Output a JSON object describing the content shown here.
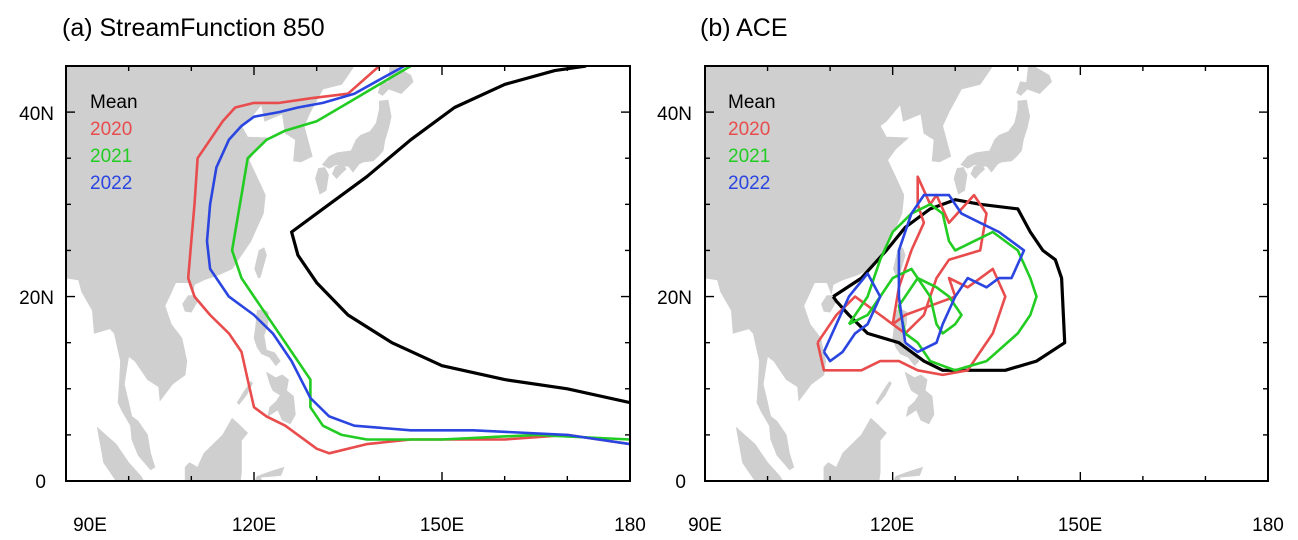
{
  "colors": {
    "mean": "#000000",
    "2020": "#e84c4c",
    "2021": "#22cc22",
    "2022": "#2a45e0",
    "land": "#cfcfcf"
  },
  "panels": [
    {
      "title": "(a) StreamFunction 850",
      "x_ticks": [
        "90E",
        "120E",
        "150E",
        "180"
      ],
      "y_ticks": [
        "0",
        "20N",
        "40N"
      ],
      "legend": [
        "Mean",
        "2020",
        "2021",
        "2022"
      ]
    },
    {
      "title": "(b) ACE",
      "x_ticks": [
        "90E",
        "120E",
        "150E",
        "180"
      ],
      "y_ticks": [
        "0",
        "20N",
        "40N"
      ],
      "legend": [
        "Mean",
        "2020",
        "2021",
        "2022"
      ]
    }
  ],
  "chart_data": [
    {
      "type": "line",
      "title": "(a) StreamFunction 850",
      "xlim": [
        90,
        180
      ],
      "ylim": [
        0,
        45
      ],
      "series": [
        {
          "name": "Mean",
          "color": "#000000",
          "points": [
            [
              173,
              45
            ],
            [
              168,
              44.5
            ],
            [
              160,
              43
            ],
            [
              152,
              40.5
            ],
            [
              145,
              37
            ],
            [
              138,
              33
            ],
            [
              131,
              29.5
            ],
            [
              127,
              27.5
            ],
            [
              126,
              27
            ],
            [
              127,
              24.5
            ],
            [
              130,
              21.5
            ],
            [
              135,
              18
            ],
            [
              142,
              15
            ],
            [
              150,
              12.5
            ],
            [
              160,
              11
            ],
            [
              170,
              10
            ],
            [
              180,
              8.5
            ]
          ]
        },
        {
          "name": "2020",
          "color": "#e84c4c",
          "points": [
            [
              140,
              45
            ],
            [
              135,
              42
            ],
            [
              129,
              41.5
            ],
            [
              124,
              41
            ],
            [
              120,
              41
            ],
            [
              117,
              40.5
            ],
            [
              115,
              39
            ],
            [
              113,
              37
            ],
            [
              111,
              35
            ],
            [
              110.5,
              30
            ],
            [
              110,
              26
            ],
            [
              109.5,
              22
            ],
            [
              110.5,
              20
            ],
            [
              113,
              18
            ],
            [
              116,
              16
            ],
            [
              118,
              14
            ],
            [
              119,
              11
            ],
            [
              120,
              8
            ],
            [
              122,
              7
            ],
            [
              125,
              6
            ],
            [
              127,
              5
            ],
            [
              130,
              3.5
            ],
            [
              132,
              3
            ],
            [
              138,
              4
            ],
            [
              145,
              4.5
            ],
            [
              160,
              4.5
            ],
            [
              170,
              5
            ],
            [
              180,
              4
            ]
          ]
        },
        {
          "name": "2021",
          "color": "#22cc22",
          "points": [
            [
              145,
              45
            ],
            [
              140,
              43
            ],
            [
              135,
              41
            ],
            [
              130,
              39
            ],
            [
              125,
              38
            ],
            [
              122,
              37
            ],
            [
              119,
              35
            ],
            [
              118,
              31
            ],
            [
              117,
              27
            ],
            [
              116.5,
              25
            ],
            [
              118,
              22
            ],
            [
              120,
              20
            ],
            [
              123,
              17
            ],
            [
              126,
              14
            ],
            [
              128,
              12
            ],
            [
              129,
              11
            ],
            [
              129,
              8
            ],
            [
              131,
              6
            ],
            [
              134,
              5
            ],
            [
              138,
              4.5
            ],
            [
              150,
              4.5
            ],
            [
              165,
              5
            ],
            [
              180,
              4.5
            ]
          ]
        },
        {
          "name": "2022",
          "color": "#2a45e0",
          "points": [
            [
              144,
              45
            ],
            [
              140,
              43.5
            ],
            [
              136,
              42
            ],
            [
              131,
              41
            ],
            [
              127,
              40.5
            ],
            [
              124,
              40
            ],
            [
              120,
              39.5
            ],
            [
              118,
              38.5
            ],
            [
              116,
              37
            ],
            [
              114,
              34
            ],
            [
              113,
              30
            ],
            [
              112.5,
              26
            ],
            [
              113,
              23
            ],
            [
              116,
              20
            ],
            [
              120,
              18
            ],
            [
              123,
              16
            ],
            [
              126,
              13
            ],
            [
              129,
              9
            ],
            [
              132,
              7
            ],
            [
              136,
              6
            ],
            [
              145,
              5.5
            ],
            [
              155,
              5.5
            ],
            [
              170,
              5
            ],
            [
              180,
              4
            ]
          ]
        }
      ]
    },
    {
      "type": "line",
      "title": "(b) ACE",
      "xlim": [
        90,
        180
      ],
      "ylim": [
        0,
        45
      ],
      "series": [
        {
          "name": "Mean",
          "color": "#000000",
          "points": [
            [
              110.5,
              20
            ],
            [
              115,
              22
            ],
            [
              119,
              25
            ],
            [
              122,
              27.5
            ],
            [
              126,
              29.5
            ],
            [
              130,
              30.5
            ],
            [
              134,
              30
            ],
            [
              140,
              29.5
            ],
            [
              142,
              27
            ],
            [
              144,
              25
            ],
            [
              146,
              24
            ],
            [
              147,
              22
            ],
            [
              147.5,
              15
            ],
            [
              143,
              13
            ],
            [
              138,
              12
            ],
            [
              132,
              12
            ],
            [
              128,
              12
            ],
            [
              125,
              13
            ],
            [
              121,
              15
            ],
            [
              116,
              16
            ],
            [
              113,
              18
            ],
            [
              111,
              19.5
            ],
            [
              110.5,
              20
            ]
          ]
        },
        {
          "name": "2020",
          "color": "#e84c4c",
          "points": [
            [
              108,
              15
            ],
            [
              109,
              12
            ],
            [
              112,
              12
            ],
            [
              115,
              12
            ],
            [
              118,
              13
            ],
            [
              121,
              13
            ],
            [
              124,
              12
            ],
            [
              128,
              11.5
            ],
            [
              132,
              12
            ],
            [
              134,
              14
            ],
            [
              136,
              16
            ],
            [
              138,
              20
            ],
            [
              136,
              23
            ],
            [
              132,
              21
            ],
            [
              129,
              22
            ],
            [
              130,
              20
            ],
            [
              126,
              19
            ],
            [
              122,
              18
            ],
            [
              120,
              17
            ],
            [
              121,
              21
            ],
            [
              123,
              25
            ],
            [
              125,
              28
            ],
            [
              124,
              30
            ],
            [
              124,
              33
            ],
            [
              126,
              30
            ],
            [
              127,
              31
            ],
            [
              129,
              28
            ],
            [
              133,
              31
            ],
            [
              135,
              29
            ],
            [
              134,
              25
            ],
            [
              129,
              24
            ],
            [
              127,
              22
            ],
            [
              125,
              18
            ],
            [
              122,
              16
            ],
            [
              118,
              18
            ],
            [
              114,
              20
            ],
            [
              111,
              18
            ],
            [
              108,
              15
            ]
          ]
        },
        {
          "name": "2021",
          "color": "#22cc22",
          "points": [
            [
              113,
              17
            ],
            [
              116,
              20
            ],
            [
              118,
              24
            ],
            [
              120,
              27
            ],
            [
              123,
              29
            ],
            [
              126,
              30
            ],
            [
              128,
              29
            ],
            [
              129,
              26
            ],
            [
              130,
              25
            ],
            [
              133,
              26
            ],
            [
              136,
              27
            ],
            [
              140,
              25
            ],
            [
              142,
              22
            ],
            [
              143,
              20
            ],
            [
              142,
              18
            ],
            [
              140,
              16
            ],
            [
              135,
              13
            ],
            [
              130,
              12
            ],
            [
              126,
              13
            ],
            [
              124,
              15
            ],
            [
              122,
              16
            ],
            [
              121,
              19
            ],
            [
              124,
              22
            ],
            [
              127,
              21
            ],
            [
              129,
              20
            ],
            [
              131,
              18
            ],
            [
              130,
              17
            ],
            [
              128,
              16
            ],
            [
              127,
              17
            ],
            [
              126,
              20
            ],
            [
              123,
              23
            ],
            [
              120,
              22
            ],
            [
              118,
              20
            ],
            [
              116,
              18
            ],
            [
              113,
              17
            ]
          ]
        },
        {
          "name": "2022",
          "color": "#2a45e0",
          "points": [
            [
              109,
              14
            ],
            [
              111,
              17
            ],
            [
              113,
              20
            ],
            [
              116,
              22.5
            ],
            [
              118,
              20
            ],
            [
              116,
              17
            ],
            [
              114,
              16
            ],
            [
              112,
              14
            ],
            [
              110,
              13
            ],
            [
              109,
              14
            ]
          ]
        },
        {
          "name": "2022",
          "color": "#2a45e0",
          "points": [
            [
              122,
              15
            ],
            [
              121,
              20
            ],
            [
              121,
              25
            ],
            [
              123,
              29
            ],
            [
              125,
              31
            ],
            [
              129,
              31
            ],
            [
              131,
              29
            ],
            [
              134,
              28
            ],
            [
              137,
              27
            ],
            [
              141,
              25
            ],
            [
              139,
              22
            ],
            [
              137,
              22
            ],
            [
              135,
              21
            ],
            [
              132,
              22
            ],
            [
              130,
              20
            ],
            [
              128,
              17
            ],
            [
              127,
              15
            ],
            [
              124,
              14
            ],
            [
              122,
              15
            ]
          ]
        }
      ]
    }
  ]
}
